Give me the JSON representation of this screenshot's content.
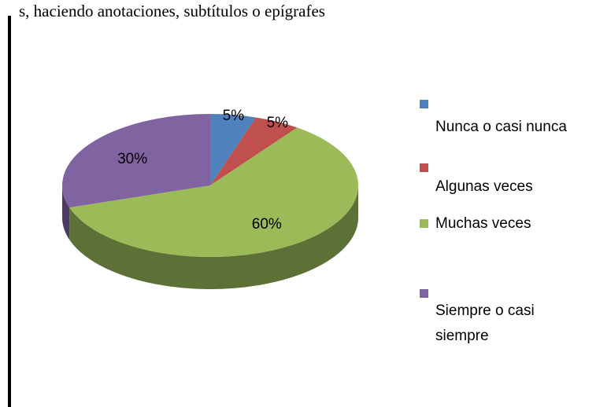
{
  "chart_data": {
    "type": "pie",
    "title": "s, haciendo anotaciones, subtítulos o epígrafes",
    "categories": [
      "Nunca o casi nunca",
      "Algunas veces",
      "Muchas veces",
      "Siempre o casi siempre"
    ],
    "values": [
      5,
      5,
      60,
      30
    ],
    "value_labels": [
      "5%",
      "5%",
      "60%",
      "30%"
    ],
    "colors": [
      "#4f81bd",
      "#c0504d",
      "#9bbb59",
      "#8064a2"
    ],
    "legend": "right"
  }
}
